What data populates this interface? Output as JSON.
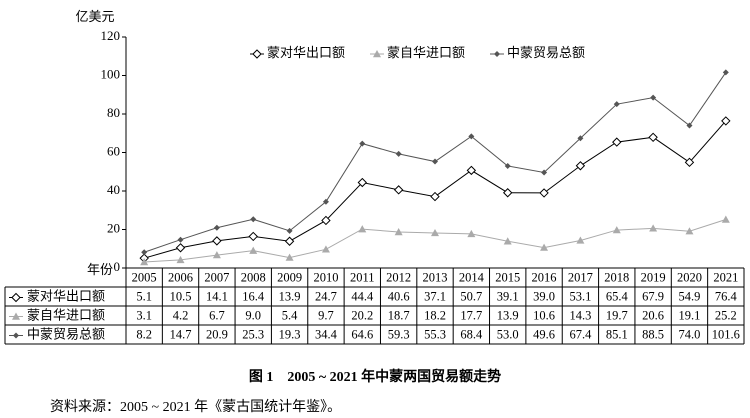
{
  "chart_data": {
    "type": "line",
    "title": "图 1　2005 ~ 2021 年中蒙两国贸易额走势",
    "source": "资料来源：2005 ~ 2021 年《蒙古国统计年鉴》。",
    "y_label": "亿美元",
    "x_label": "年份",
    "categories": [
      "2005",
      "2006",
      "2007",
      "2008",
      "2009",
      "2010",
      "2011",
      "2012",
      "2013",
      "2014",
      "2015",
      "2016",
      "2017",
      "2018",
      "2019",
      "2020",
      "2021"
    ],
    "series": [
      {
        "name": "蒙对华出口额",
        "color": "#000000",
        "marker": "diamond-open",
        "values": [
          5.1,
          10.5,
          14.1,
          16.4,
          13.9,
          24.7,
          44.4,
          40.6,
          37.1,
          50.7,
          39.1,
          39,
          53.1,
          65.4,
          67.9,
          54.9,
          76.4
        ],
        "value_labels": [
          "5.1",
          "10.5",
          "14.1",
          "16.4",
          "13.9",
          "24.7",
          "44.4",
          "40.6",
          "37.1",
          "50.7",
          "39.1",
          "39.0",
          "53.1",
          "65.4",
          "67.9",
          "54.9",
          "76.4"
        ]
      },
      {
        "name": "蒙自华进口额",
        "color": "#aaaaaa",
        "marker": "triangle",
        "values": [
          3.1,
          4.2,
          6.7,
          9,
          5.4,
          9.7,
          20.2,
          18.7,
          18.2,
          17.7,
          13.9,
          10.6,
          14.3,
          19.7,
          20.6,
          19.1,
          25.2
        ],
        "value_labels": [
          "3.1",
          "4.2",
          "6.7",
          "9.0",
          "5.4",
          "9.7",
          "20.2",
          "18.7",
          "18.2",
          "17.7",
          "13.9",
          "10.6",
          "14.3",
          "19.7",
          "20.6",
          "19.1",
          "25.2"
        ]
      },
      {
        "name": "中蒙贸易总额",
        "color": "#555555",
        "marker": "diamond",
        "values": [
          8.2,
          14.7,
          20.9,
          25.3,
          19.3,
          34.4,
          64.6,
          59.3,
          55.3,
          68.4,
          53,
          49.6,
          67.4,
          85.1,
          88.5,
          74,
          101.6
        ],
        "value_labels": [
          "8.2",
          "14.7",
          "20.9",
          "25.3",
          "19.3",
          "34.4",
          "64.6",
          "59.3",
          "55.3",
          "68.4",
          "53.0",
          "49.6",
          "67.4",
          "85.1",
          "88.5",
          "74.0",
          "101.6"
        ]
      }
    ],
    "ylim": [
      0,
      120
    ],
    "yticks": [
      0,
      20,
      40,
      60,
      80,
      100,
      120
    ],
    "grid": false,
    "legend": "top"
  }
}
